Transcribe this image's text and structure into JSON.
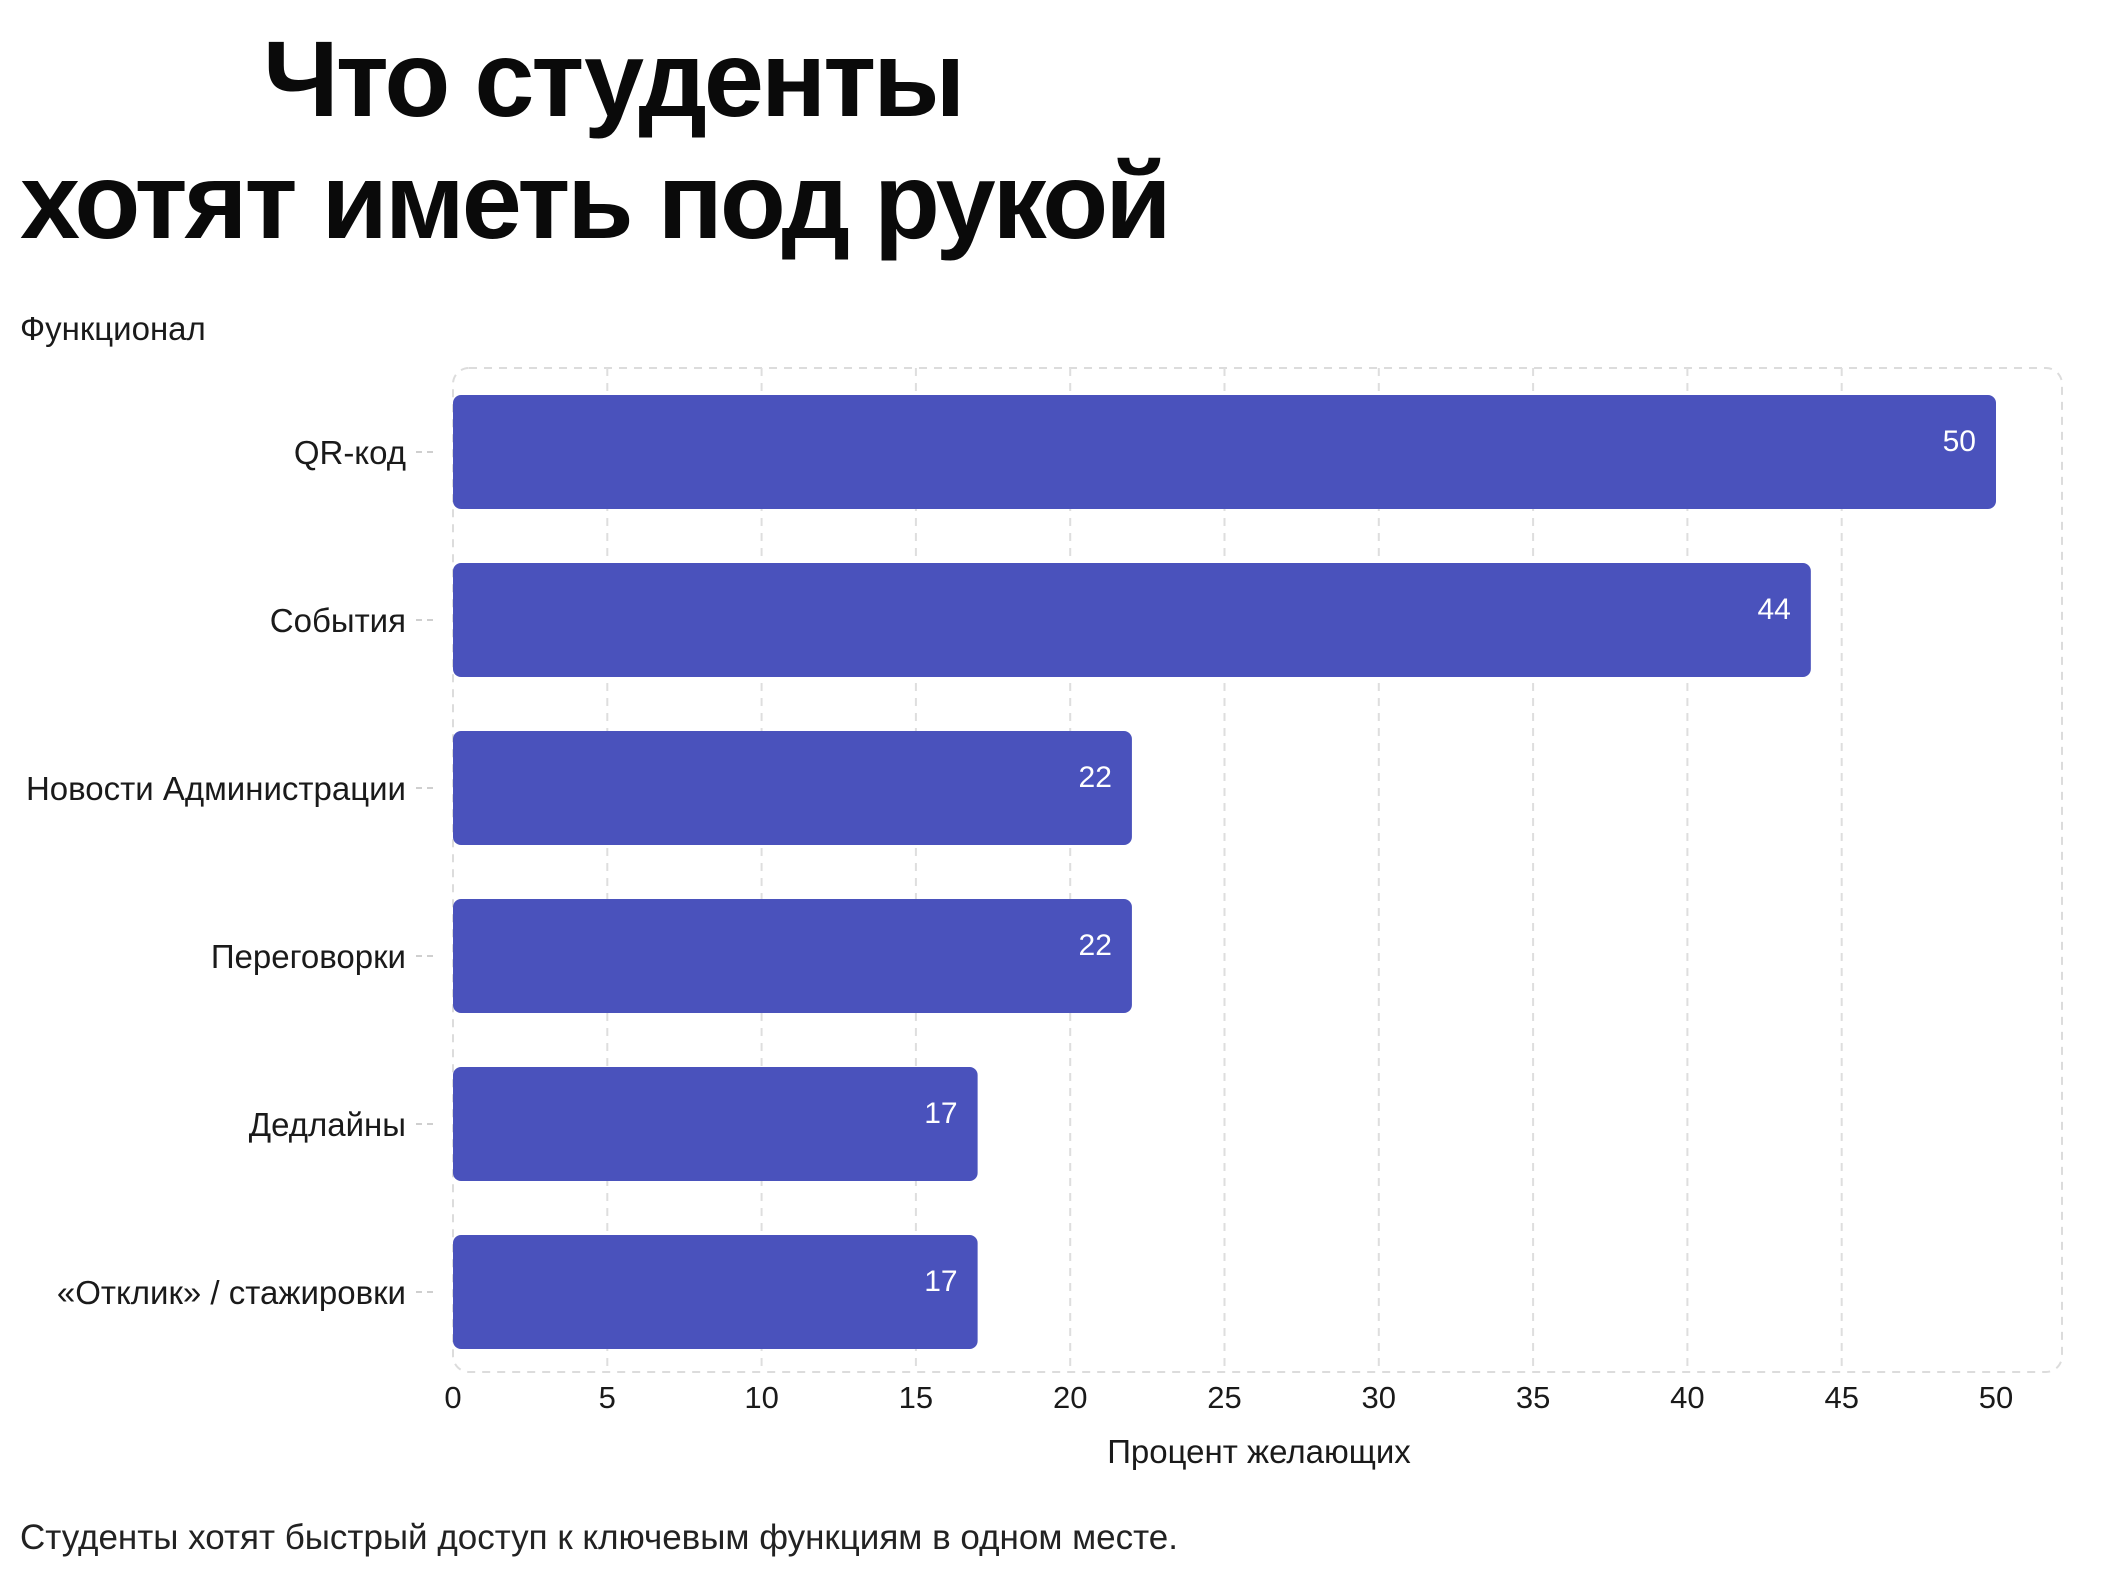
{
  "page": {
    "title_line1": "Что студенты",
    "title_line2": "хотят иметь под рукой",
    "caption": "Студенты хотят быстрый доступ к ключевым функциям в одном месте."
  },
  "chart_data": {
    "type": "bar",
    "orientation": "horizontal",
    "categories": [
      "QR-код",
      "События",
      "Новости Администрации",
      "Переговорки",
      "Дедлайны",
      "«Отклик» / стажировки"
    ],
    "values": [
      50,
      44,
      22,
      22,
      17,
      17
    ],
    "data_labels": [
      "50",
      "44",
      "22",
      "22",
      "17",
      "17"
    ],
    "xlabel": "Процент желающих",
    "ylabel": "Функционал",
    "xlim": [
      0,
      50
    ],
    "xticks": [
      0,
      5,
      10,
      15,
      20,
      25,
      30,
      35,
      40,
      45,
      50
    ],
    "grid": "vertical dashed",
    "bar_color": "#4a52bc"
  }
}
